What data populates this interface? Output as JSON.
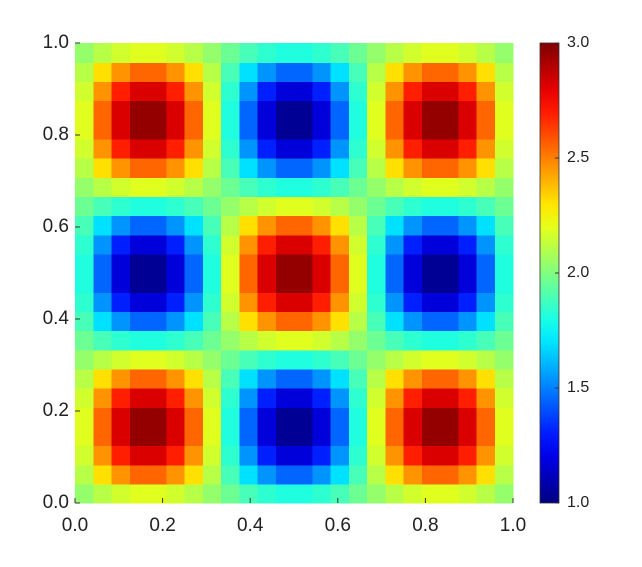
{
  "chart_data": {
    "type": "heatmap",
    "colormap": "jet",
    "xlim": [
      0,
      1
    ],
    "ylim": [
      0,
      1
    ],
    "clim": [
      1,
      3
    ],
    "xticks": [
      {
        "value": 0,
        "label": "0.0"
      },
      {
        "value": 0.2,
        "label": "0.2"
      },
      {
        "value": 0.4,
        "label": "0.4"
      },
      {
        "value": 0.6,
        "label": "0.6"
      },
      {
        "value": 0.8,
        "label": "0.8"
      },
      {
        "value": 1,
        "label": "1.0"
      }
    ],
    "yticks": [
      {
        "value": 0,
        "label": "0.0"
      },
      {
        "value": 0.2,
        "label": "0.2"
      },
      {
        "value": 0.4,
        "label": "0.4"
      },
      {
        "value": 0.6,
        "label": "0.6"
      },
      {
        "value": 0.8,
        "label": "0.8"
      },
      {
        "value": 1,
        "label": "1.0"
      }
    ],
    "cticks": [
      {
        "value": 1,
        "label": "1.0"
      },
      {
        "value": 1.5,
        "label": "1.5"
      },
      {
        "value": 2,
        "label": "2.0"
      },
      {
        "value": 2.5,
        "label": "2.5"
      },
      {
        "value": 3,
        "label": "3.0"
      }
    ],
    "z": [
      [
        2.04,
        2.11,
        2.16,
        2.19,
        2.19,
        2.16,
        2.11,
        2.04,
        1.96,
        1.89,
        1.84,
        1.81,
        1.81,
        1.84,
        1.89,
        1.96,
        2.04,
        2.11,
        2.16,
        2.19,
        2.19,
        2.16,
        2.11,
        2.04
      ],
      [
        2.11,
        2.31,
        2.46,
        2.55,
        2.55,
        2.46,
        2.31,
        2.11,
        1.89,
        1.69,
        1.54,
        1.45,
        1.45,
        1.54,
        1.69,
        1.89,
        2.11,
        2.31,
        2.46,
        2.55,
        2.55,
        2.46,
        2.31,
        2.11
      ],
      [
        2.16,
        2.46,
        2.69,
        2.82,
        2.82,
        2.69,
        2.46,
        2.16,
        1.84,
        1.54,
        1.31,
        1.18,
        1.18,
        1.31,
        1.54,
        1.84,
        2.16,
        2.46,
        2.69,
        2.82,
        2.82,
        2.69,
        2.46,
        2.16
      ],
      [
        2.19,
        2.55,
        2.82,
        2.96,
        2.96,
        2.82,
        2.55,
        2.19,
        1.81,
        1.45,
        1.18,
        1.04,
        1.04,
        1.18,
        1.45,
        1.81,
        2.19,
        2.55,
        2.82,
        2.96,
        2.96,
        2.82,
        2.55,
        2.19
      ],
      [
        2.19,
        2.55,
        2.82,
        2.96,
        2.96,
        2.82,
        2.55,
        2.19,
        1.81,
        1.45,
        1.18,
        1.04,
        1.04,
        1.18,
        1.45,
        1.81,
        2.19,
        2.55,
        2.82,
        2.96,
        2.96,
        2.82,
        2.55,
        2.19
      ],
      [
        2.16,
        2.46,
        2.69,
        2.82,
        2.82,
        2.69,
        2.46,
        2.16,
        1.84,
        1.54,
        1.31,
        1.18,
        1.18,
        1.31,
        1.54,
        1.84,
        2.16,
        2.46,
        2.69,
        2.82,
        2.82,
        2.69,
        2.46,
        2.16
      ],
      [
        2.11,
        2.31,
        2.46,
        2.55,
        2.55,
        2.46,
        2.31,
        2.11,
        1.89,
        1.69,
        1.54,
        1.45,
        1.45,
        1.54,
        1.69,
        1.89,
        2.11,
        2.31,
        2.46,
        2.55,
        2.55,
        2.46,
        2.31,
        2.11
      ],
      [
        2.04,
        2.11,
        2.16,
        2.19,
        2.19,
        2.16,
        2.11,
        2.04,
        1.96,
        1.89,
        1.84,
        1.81,
        1.81,
        1.84,
        1.89,
        1.96,
        2.04,
        2.11,
        2.16,
        2.19,
        2.19,
        2.16,
        2.11,
        2.04
      ],
      [
        1.96,
        1.89,
        1.84,
        1.81,
        1.81,
        1.84,
        1.89,
        1.96,
        2.04,
        2.11,
        2.16,
        2.19,
        2.19,
        2.16,
        2.11,
        2.04,
        1.96,
        1.89,
        1.84,
        1.81,
        1.81,
        1.84,
        1.89,
        1.96
      ],
      [
        1.89,
        1.69,
        1.54,
        1.45,
        1.45,
        1.54,
        1.69,
        1.89,
        2.11,
        2.31,
        2.46,
        2.55,
        2.55,
        2.46,
        2.31,
        2.11,
        1.89,
        1.69,
        1.54,
        1.45,
        1.45,
        1.54,
        1.69,
        1.89
      ],
      [
        1.84,
        1.54,
        1.31,
        1.18,
        1.18,
        1.31,
        1.54,
        1.84,
        2.16,
        2.46,
        2.69,
        2.82,
        2.82,
        2.69,
        2.46,
        2.16,
        1.84,
        1.54,
        1.31,
        1.18,
        1.18,
        1.31,
        1.54,
        1.84
      ],
      [
        1.81,
        1.45,
        1.18,
        1.04,
        1.04,
        1.18,
        1.45,
        1.81,
        2.19,
        2.55,
        2.82,
        2.96,
        2.96,
        2.82,
        2.55,
        2.19,
        1.81,
        1.45,
        1.18,
        1.04,
        1.04,
        1.18,
        1.45,
        1.81
      ],
      [
        1.81,
        1.45,
        1.18,
        1.04,
        1.04,
        1.18,
        1.45,
        1.81,
        2.19,
        2.55,
        2.82,
        2.96,
        2.96,
        2.82,
        2.55,
        2.19,
        1.81,
        1.45,
        1.18,
        1.04,
        1.04,
        1.18,
        1.45,
        1.81
      ],
      [
        1.84,
        1.54,
        1.31,
        1.18,
        1.18,
        1.31,
        1.54,
        1.84,
        2.16,
        2.46,
        2.69,
        2.82,
        2.82,
        2.69,
        2.46,
        2.16,
        1.84,
        1.54,
        1.31,
        1.18,
        1.18,
        1.31,
        1.54,
        1.84
      ],
      [
        1.89,
        1.69,
        1.54,
        1.45,
        1.45,
        1.54,
        1.69,
        1.89,
        2.11,
        2.31,
        2.46,
        2.55,
        2.55,
        2.46,
        2.31,
        2.11,
        1.89,
        1.69,
        1.54,
        1.45,
        1.45,
        1.54,
        1.69,
        1.89
      ],
      [
        1.96,
        1.89,
        1.84,
        1.81,
        1.81,
        1.84,
        1.89,
        1.96,
        2.04,
        2.11,
        2.16,
        2.19,
        2.19,
        2.16,
        2.11,
        2.04,
        1.96,
        1.89,
        1.84,
        1.81,
        1.81,
        1.84,
        1.89,
        1.96
      ],
      [
        2.04,
        2.11,
        2.16,
        2.19,
        2.19,
        2.16,
        2.11,
        2.04,
        1.96,
        1.89,
        1.84,
        1.81,
        1.81,
        1.84,
        1.89,
        1.96,
        2.04,
        2.11,
        2.16,
        2.19,
        2.19,
        2.16,
        2.11,
        2.04
      ],
      [
        2.11,
        2.31,
        2.46,
        2.55,
        2.55,
        2.46,
        2.31,
        2.11,
        1.89,
        1.69,
        1.54,
        1.45,
        1.45,
        1.54,
        1.69,
        1.89,
        2.11,
        2.31,
        2.46,
        2.55,
        2.55,
        2.46,
        2.31,
        2.11
      ],
      [
        2.16,
        2.46,
        2.69,
        2.82,
        2.82,
        2.69,
        2.46,
        2.16,
        1.84,
        1.54,
        1.31,
        1.18,
        1.18,
        1.31,
        1.54,
        1.84,
        2.16,
        2.46,
        2.69,
        2.82,
        2.82,
        2.69,
        2.46,
        2.16
      ],
      [
        2.19,
        2.55,
        2.82,
        2.96,
        2.96,
        2.82,
        2.55,
        2.19,
        1.81,
        1.45,
        1.18,
        1.04,
        1.04,
        1.18,
        1.45,
        1.81,
        2.19,
        2.55,
        2.82,
        2.96,
        2.96,
        2.82,
        2.55,
        2.19
      ],
      [
        2.19,
        2.55,
        2.82,
        2.96,
        2.96,
        2.82,
        2.55,
        2.19,
        1.81,
        1.45,
        1.18,
        1.04,
        1.04,
        1.18,
        1.45,
        1.81,
        2.19,
        2.55,
        2.82,
        2.96,
        2.96,
        2.82,
        2.55,
        2.19
      ],
      [
        2.16,
        2.46,
        2.69,
        2.82,
        2.82,
        2.69,
        2.46,
        2.16,
        1.84,
        1.54,
        1.31,
        1.18,
        1.18,
        1.31,
        1.54,
        1.84,
        2.16,
        2.46,
        2.69,
        2.82,
        2.82,
        2.69,
        2.46,
        2.16
      ],
      [
        2.11,
        2.31,
        2.46,
        2.55,
        2.55,
        2.46,
        2.31,
        2.11,
        1.89,
        1.69,
        1.54,
        1.45,
        1.45,
        1.54,
        1.69,
        1.89,
        2.11,
        2.31,
        2.46,
        2.55,
        2.55,
        2.46,
        2.31,
        2.11
      ],
      [
        2.04,
        2.11,
        2.16,
        2.19,
        2.19,
        2.16,
        2.11,
        2.04,
        1.96,
        1.89,
        1.84,
        1.81,
        1.81,
        1.84,
        1.89,
        1.96,
        2.04,
        2.11,
        2.16,
        2.19,
        2.19,
        2.16,
        2.11,
        2.04
      ]
    ]
  }
}
